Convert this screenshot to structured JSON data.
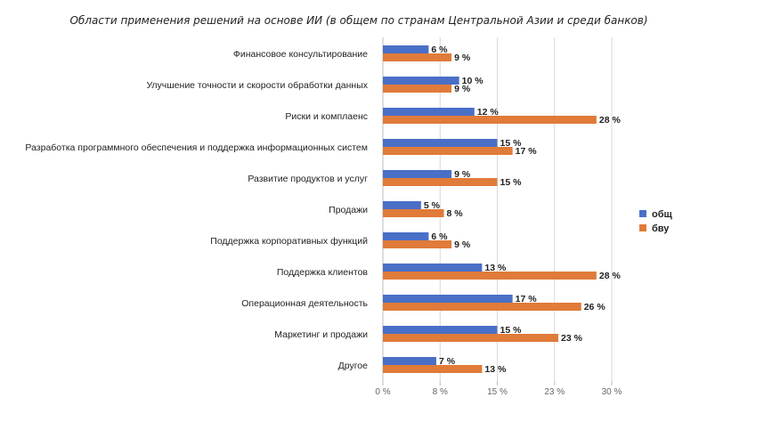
{
  "chart_data": {
    "type": "bar",
    "orientation": "horizontal",
    "title": "Области применения решений на основе ИИ (в общем по странам Центральной Азии и среди банков)",
    "categories": [
      "Финансовое консультирование",
      "Улучшение точности и скорости обработки данных",
      "Риски и комплаенс",
      "Разработка программного обеспечения и поддержка информационных систем",
      "Развитие продуктов и услуг",
      "Продажи",
      "Поддержка корпоративных функций",
      "Поддержка клиентов",
      "Операционная деятельность",
      "Маркетинг и продажи",
      "Другое"
    ],
    "series": [
      {
        "name": "общ",
        "color": "#4a6fc7",
        "values": [
          6,
          10,
          12,
          15,
          9,
          5,
          6,
          13,
          17,
          15,
          7
        ]
      },
      {
        "name": "бву",
        "color": "#e07b39",
        "values": [
          9,
          9,
          28,
          17,
          15,
          8,
          9,
          28,
          26,
          23,
          13
        ]
      }
    ],
    "value_suffix": " %",
    "xlim": [
      0,
      30
    ],
    "x_ticks": [
      0,
      7.5,
      15,
      22.5,
      30
    ],
    "x_tick_labels": [
      "0 %",
      "8 %",
      "15 %",
      "23 %",
      "30 %"
    ],
    "grid": true,
    "legend_position": "right"
  }
}
